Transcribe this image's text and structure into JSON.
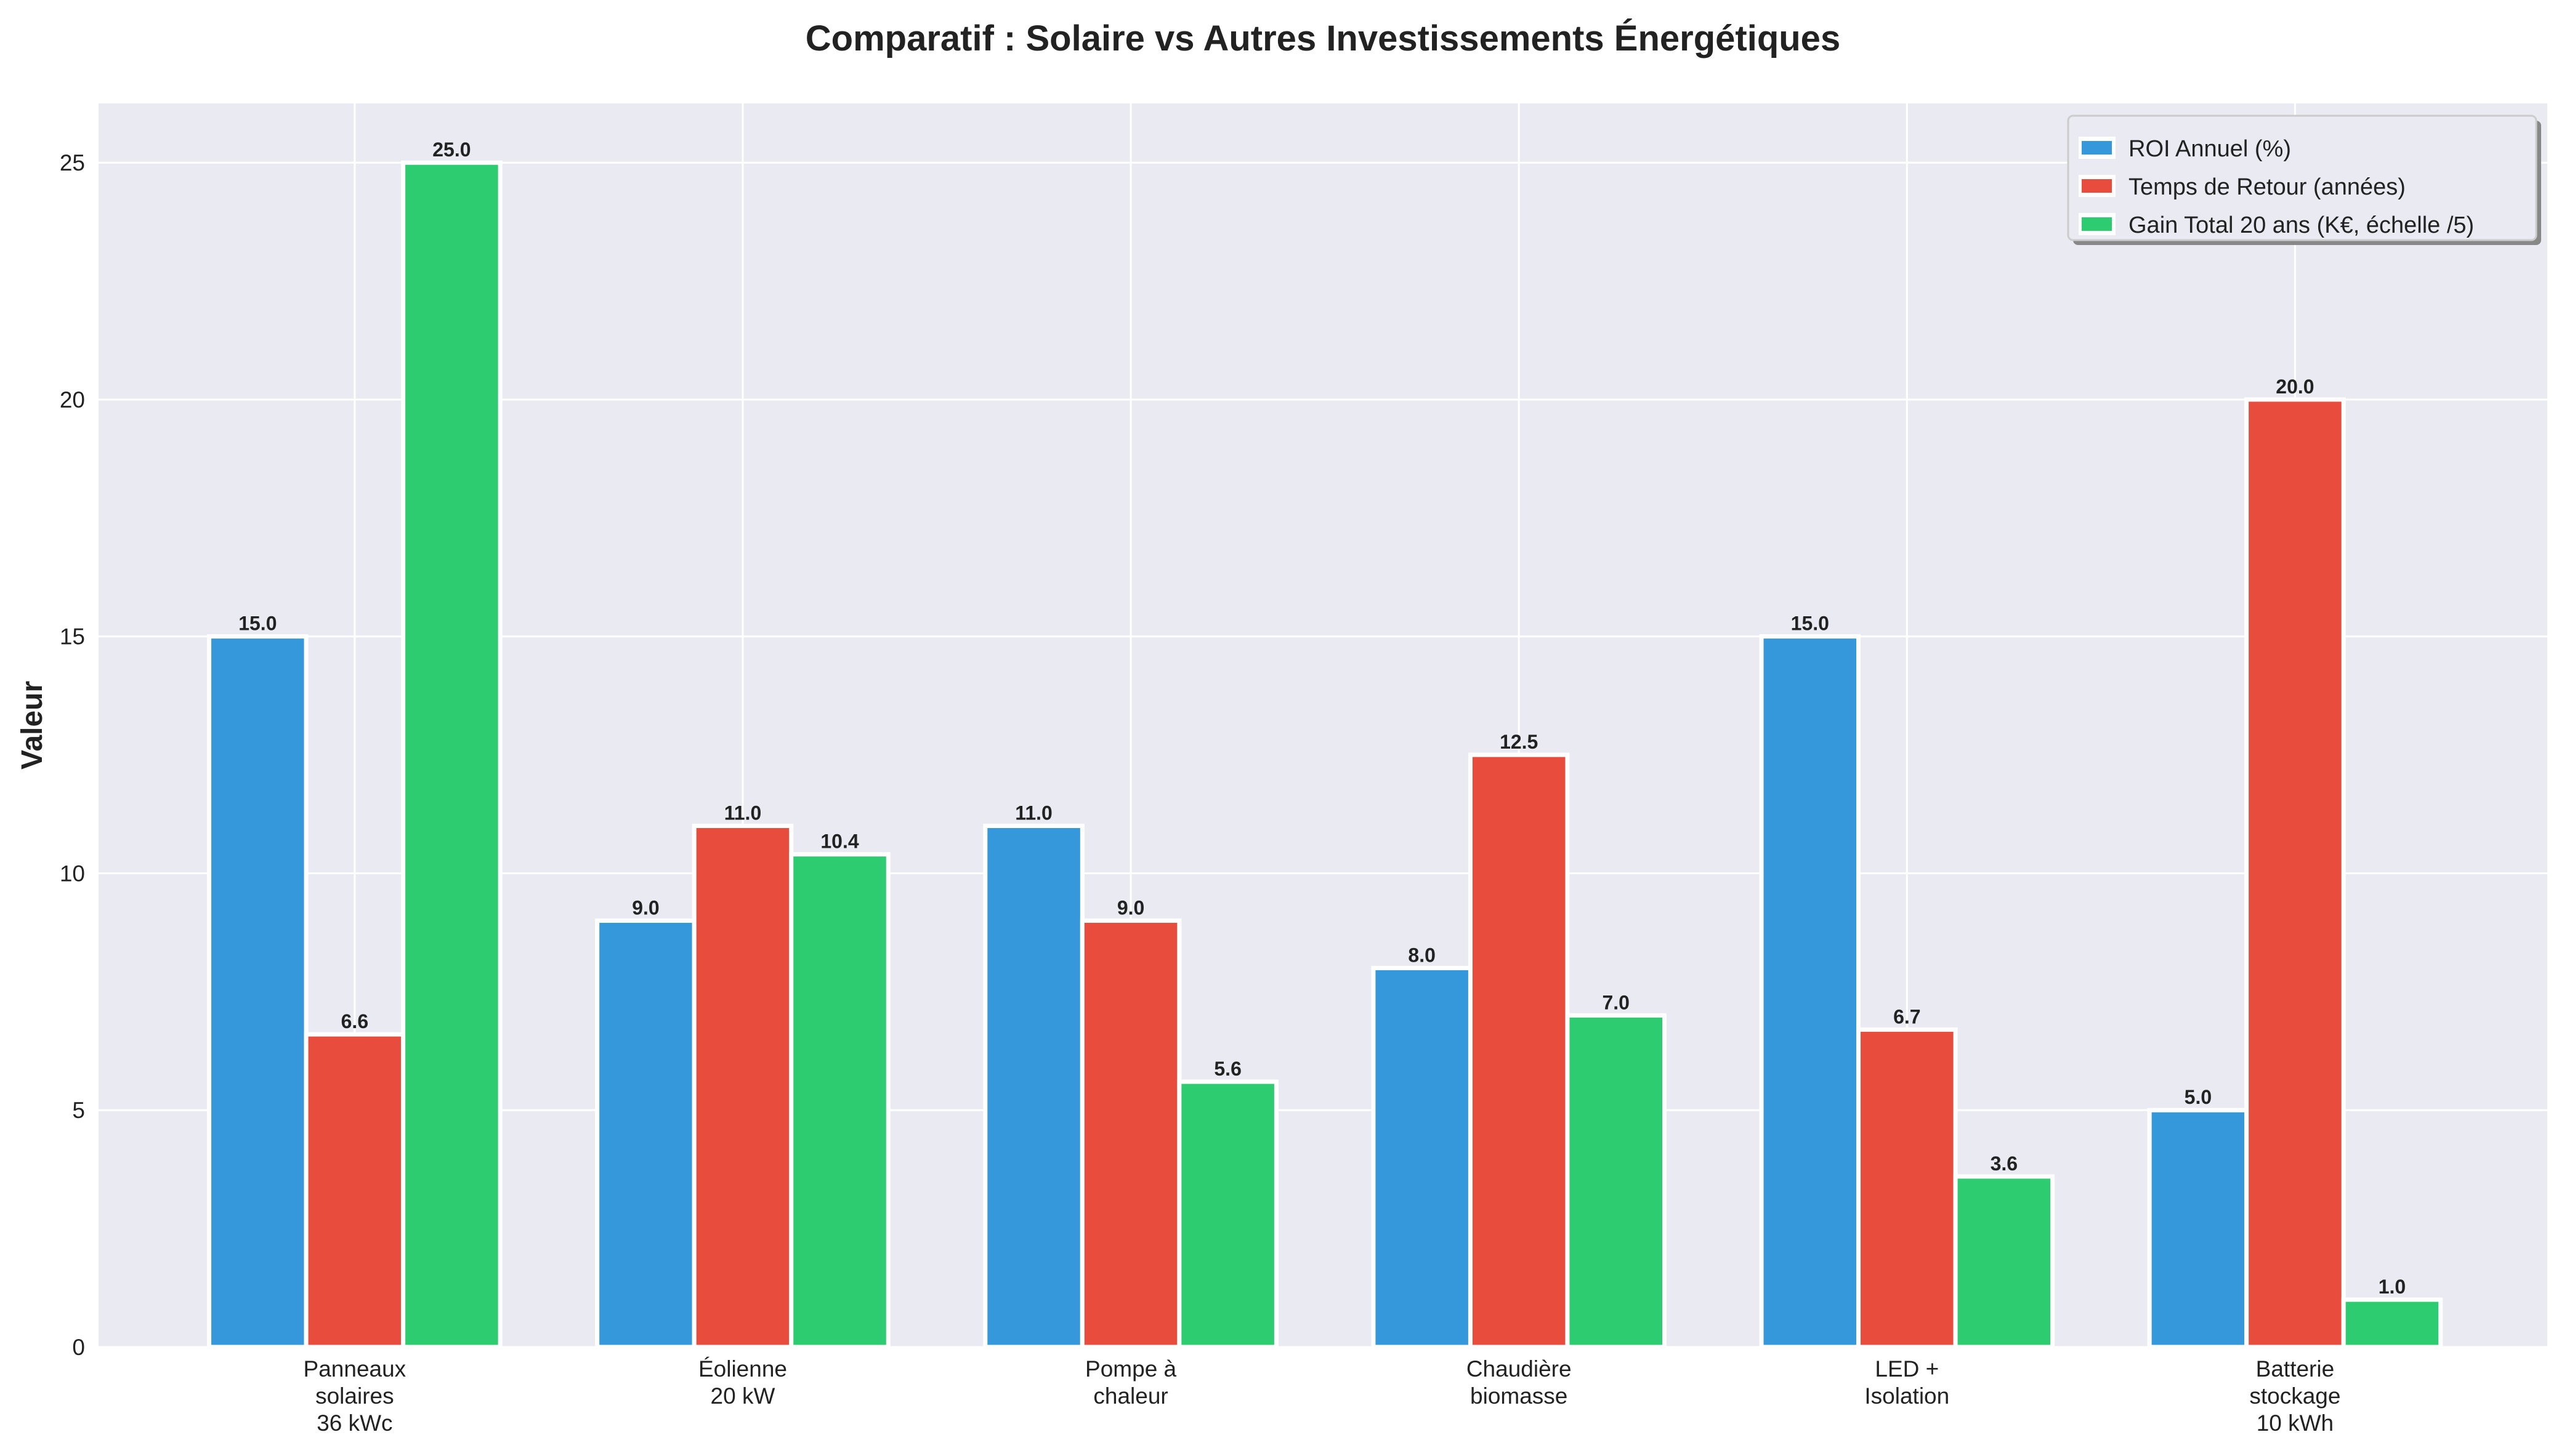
{
  "chart_data": {
    "type": "bar",
    "title": "Comparatif : Solaire vs Autres Investissements Énergétiques",
    "xlabel": "",
    "ylabel": "Valeur",
    "categories": [
      [
        "Panneaux",
        "solaires",
        "36 kWc"
      ],
      [
        "Éolienne",
        "20 kW"
      ],
      [
        "Pompe à",
        "chaleur"
      ],
      [
        "Chaudière",
        "biomasse"
      ],
      [
        "LED +",
        "Isolation"
      ],
      [
        "Batterie",
        "stockage",
        "10 kWh"
      ]
    ],
    "series": [
      {
        "name": "ROI Annuel (%)",
        "color": "#3498db",
        "values": [
          15.0,
          9.0,
          11.0,
          8.0,
          15.0,
          5.0
        ]
      },
      {
        "name": "Temps de Retour (années)",
        "color": "#e74c3c",
        "values": [
          6.6,
          11.0,
          9.0,
          12.5,
          6.7,
          20.0
        ]
      },
      {
        "name": "Gain Total 20 ans (K€, échelle /5)",
        "color": "#2ecc71",
        "values": [
          25.0,
          10.4,
          5.6,
          7.0,
          3.6,
          1.0
        ]
      }
    ],
    "ylim": [
      0,
      26.25
    ],
    "yticks": [
      0,
      5,
      10,
      15,
      20,
      25
    ],
    "grid": true,
    "legend_position": "top-right",
    "data_labels": true
  }
}
